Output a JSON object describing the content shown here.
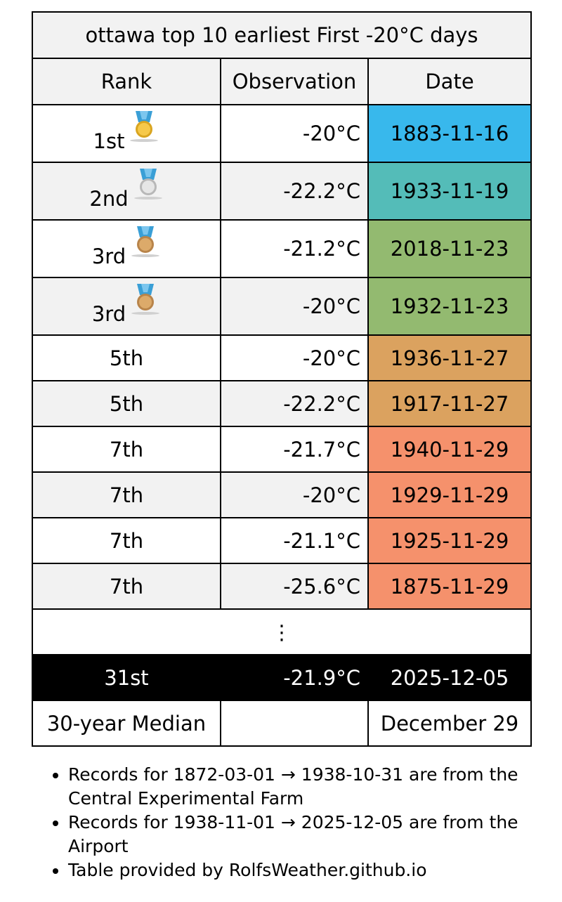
{
  "table": {
    "title": "ottawa top 10 earliest First -20°C days",
    "headers": [
      "Rank",
      "Observation",
      "Date"
    ],
    "rows": [
      {
        "rank": "1st",
        "obs": "-20°C",
        "date": "1883-11-16",
        "color": "#38b8ec",
        "medal": "gold"
      },
      {
        "rank": "2nd",
        "obs": "-22.2°C",
        "date": "1933-11-19",
        "color": "#54bcb8",
        "medal": "silver"
      },
      {
        "rank": "3rd",
        "obs": "-21.2°C",
        "date": "2018-11-23",
        "color": "#93ba70",
        "medal": "bronze"
      },
      {
        "rank": "3rd",
        "obs": "-20°C",
        "date": "1932-11-23",
        "color": "#93ba70",
        "medal": "bronze"
      },
      {
        "rank": "5th",
        "obs": "-20°C",
        "date": "1936-11-27",
        "color": "#dba25f",
        "medal": ""
      },
      {
        "rank": "5th",
        "obs": "-22.2°C",
        "date": "1917-11-27",
        "color": "#dba25f",
        "medal": ""
      },
      {
        "rank": "7th",
        "obs": "-21.7°C",
        "date": "1940-11-29",
        "color": "#f5916c",
        "medal": ""
      },
      {
        "rank": "7th",
        "obs": "-20°C",
        "date": "1929-11-29",
        "color": "#f5916c",
        "medal": ""
      },
      {
        "rank": "7th",
        "obs": "-21.1°C",
        "date": "1925-11-29",
        "color": "#f5916c",
        "medal": ""
      },
      {
        "rank": "7th",
        "obs": "-25.6°C",
        "date": "1875-11-29",
        "color": "#f5916c",
        "medal": ""
      }
    ],
    "ellipsis": "⋮",
    "current": {
      "rank": "31st",
      "obs": "-21.9°C",
      "date": "2025-12-05"
    },
    "median": {
      "label": "30-year Median",
      "obs": "",
      "date": "December 29"
    }
  },
  "notes": [
    "Records for 1872-03-01 → 1938-10-31 are from the Central Experimental Farm",
    "Records for 1938-11-01 → 2025-12-05 are from the Airport",
    "Table provided by RolfsWeather.github.io"
  ]
}
